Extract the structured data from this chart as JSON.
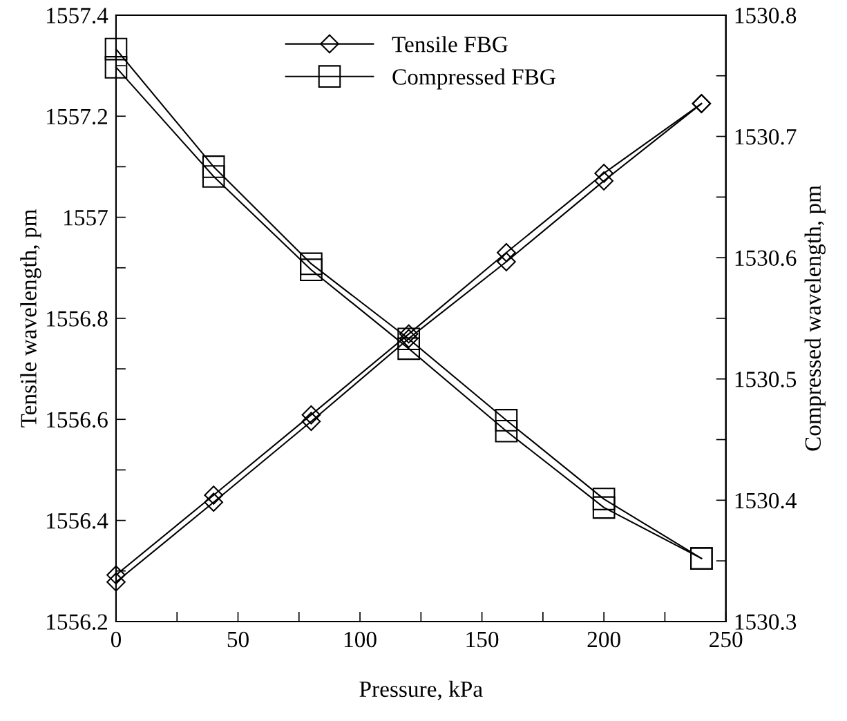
{
  "chart_data": {
    "type": "line",
    "xlabel": "Pressure, kPa",
    "ylabel": "Tensile wavelength, pm",
    "y2label": "Compressed wavelength, pm",
    "xlim": [
      0,
      250
    ],
    "xticks": [
      0,
      {
        "value": 25,
        "label": null
      },
      50,
      {
        "value": 75,
        "label": null
      },
      100,
      {
        "value": 125,
        "label": null
      },
      150,
      {
        "value": 175,
        "label": null
      },
      200,
      {
        "value": 225,
        "label": null
      },
      250
    ],
    "ylim": [
      1556.2,
      1557.4
    ],
    "yticks": [
      1556.2,
      {
        "value": 1556.3,
        "label": null
      },
      1556.4,
      {
        "value": 1556.5,
        "label": null
      },
      1556.6,
      {
        "value": 1556.7,
        "label": null
      },
      1556.8,
      {
        "value": 1556.9,
        "label": null
      },
      {
        "value": 1557,
        "label": "1557"
      },
      {
        "value": 1557.1,
        "label": null
      },
      1557.2,
      {
        "value": 1557.3,
        "label": null
      },
      1557.4
    ],
    "y2lim": [
      1530.3,
      1530.8
    ],
    "y2ticks": [
      1530.3,
      {
        "value": 1530.35,
        "label": null
      },
      1530.4,
      {
        "value": 1530.45,
        "label": null
      },
      1530.5,
      {
        "value": 1530.55,
        "label": null
      },
      1530.6,
      {
        "value": 1530.65,
        "label": null
      },
      1530.7,
      {
        "value": 1530.75,
        "label": null
      },
      1530.8
    ],
    "x": [
      0,
      40,
      80,
      120,
      160,
      200,
      240
    ],
    "legend": "top",
    "grid": false,
    "line_style": "solid",
    "series": [
      {
        "name": "Tensile FBG",
        "color": "#000000",
        "marker": "diamond",
        "values": [
          1556.292,
          1556.45,
          1556.609,
          1556.769,
          1556.93,
          1557.087,
          1557.225
        ]
      },
      {
        "color": "#000000",
        "marker": "diamond",
        "values": [
          1556.278,
          1556.436,
          1556.596,
          1556.76,
          1556.912,
          1557.072,
          1557.225
        ]
      },
      {
        "name": "Compressed FBG",
        "color": "#000000",
        "marker": "square",
        "axis": "y2",
        "values": [
          1530.772,
          1530.675,
          1530.595,
          1530.533,
          1530.466,
          1530.401,
          1530.352
        ]
      },
      {
        "color": "#000000",
        "marker": "square",
        "axis": "y2",
        "values": [
          1530.757,
          1530.667,
          1530.59,
          1530.525,
          1530.457,
          1530.394,
          1530.352
        ]
      }
    ]
  }
}
